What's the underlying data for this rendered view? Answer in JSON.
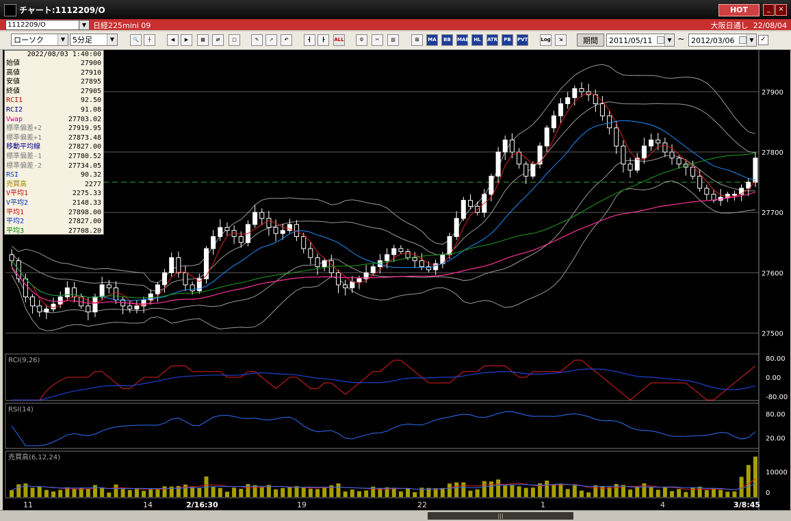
{
  "window": {
    "title": "チャート:1112209/O",
    "hot_label": "HOT",
    "min_glyph": "_",
    "close_glyph": "×"
  },
  "symbol_bar": {
    "code": "1112209/O",
    "name": "日経225mini 09",
    "session": "大阪日通し",
    "date": "22/08/04"
  },
  "toolbar": {
    "chart_type": "ローソク",
    "interval": "5分足",
    "period_label": "期間",
    "date_from": "2011/05/11",
    "date_to": "2012/03/06",
    "tilde": "~",
    "check_mark": "✓",
    "buttons": [
      {
        "name": "zoom-icon",
        "glyph": "🔍"
      },
      {
        "name": "crosshair-icon",
        "glyph": "┼"
      },
      {
        "name": "prev-icon",
        "glyph": "◀"
      },
      {
        "name": "next-icon",
        "glyph": "▶"
      },
      {
        "name": "bars-icon",
        "glyph": "▦"
      },
      {
        "name": "split-icon",
        "glyph": "⇄"
      },
      {
        "name": "blank-icon",
        "glyph": "□"
      },
      {
        "name": "pencil-icon",
        "glyph": "✎"
      },
      {
        "name": "cursor-icon",
        "glyph": "➚"
      },
      {
        "name": "undo-icon",
        "glyph": "↶"
      },
      {
        "name": "candle-icon",
        "glyph": "┫"
      },
      {
        "name": "candle2-icon",
        "glyph": "┣"
      },
      {
        "name": "all-icon",
        "glyph": "ALL"
      },
      {
        "name": "settings-icon",
        "glyph": "⚙"
      },
      {
        "name": "tools-icon",
        "glyph": "✂"
      },
      {
        "name": "palette-icon",
        "glyph": "▧"
      },
      {
        "name": "grid-icon",
        "glyph": "⊞"
      },
      {
        "name": "ma-icon",
        "glyph": "MA"
      },
      {
        "name": "bb-icon",
        "glyph": "BB"
      },
      {
        "name": "mae-icon",
        "glyph": "MAE"
      },
      {
        "name": "hl-icon",
        "glyph": "HL"
      },
      {
        "name": "atr-icon",
        "glyph": "ATR"
      },
      {
        "name": "pb-icon",
        "glyph": "PB"
      },
      {
        "name": "pvt-icon",
        "glyph": "PVT"
      },
      {
        "name": "log-icon",
        "glyph": "Log"
      },
      {
        "name": "export-icon",
        "glyph": "⇲"
      }
    ]
  },
  "info": {
    "datetime": "2022/08/03 1:40:00",
    "rows": [
      {
        "label": "始値",
        "value": "27900",
        "color": "#000000"
      },
      {
        "label": "高値",
        "value": "27910",
        "color": "#000000"
      },
      {
        "label": "安値",
        "value": "27895",
        "color": "#000000"
      },
      {
        "label": "終値",
        "value": "27905",
        "color": "#000000"
      },
      {
        "label": "RCI1",
        "value": "92.50",
        "color": "#c00000"
      },
      {
        "label": "RCI2",
        "value": "91.08",
        "color": "#00008b"
      },
      {
        "label": "Vwap",
        "value": "27703.02",
        "color": "#cc0088"
      },
      {
        "label": "標準偏差+2",
        "value": "27919.95",
        "color": "#808080"
      },
      {
        "label": "標準偏差+1",
        "value": "27873.48",
        "color": "#808080"
      },
      {
        "label": "移動平均線",
        "value": "27827.00",
        "color": "#00008b"
      },
      {
        "label": "標準偏差-1",
        "value": "27780.52",
        "color": "#808080"
      },
      {
        "label": "標準偏差-2",
        "value": "27734.05",
        "color": "#808080"
      },
      {
        "label": "RSI",
        "value": "90.32",
        "color": "#0033cc"
      },
      {
        "label": "売買高",
        "value": "2277",
        "color": "#998800"
      },
      {
        "label": "V平均1",
        "value": "2275.33",
        "color": "#c00000"
      },
      {
        "label": "V平均2",
        "value": "2148.33",
        "color": "#0033cc"
      },
      {
        "label": "平均1",
        "value": "27898.00",
        "color": "#c00000"
      },
      {
        "label": "平均2",
        "value": "27827.00",
        "color": "#0033cc"
      },
      {
        "label": "平均3",
        "value": "27708.20",
        "color": "#008800"
      }
    ]
  },
  "panels": {
    "rci": {
      "label": "RCI(9,26)",
      "ticks": [
        "80.00",
        "0.00",
        "-80.00"
      ]
    },
    "rsi": {
      "label": "RSI(14)",
      "ticks": [
        "80.00",
        "20.00"
      ]
    },
    "volume": {
      "label": "売買高(6,12,24)",
      "ticks": [
        "10000",
        "0"
      ]
    }
  },
  "x_labels": [
    "11",
    "14",
    "2/16:30",
    "19",
    "22",
    "1",
    "4",
    "3/8:45"
  ],
  "scrollbar": {
    "thumb_glyph": "|||"
  },
  "chart_data": {
    "type": "candlestick",
    "price_axis": {
      "ticks": [
        27500,
        27600,
        27700,
        27800,
        27900
      ],
      "ylim": [
        27470,
        27960
      ]
    },
    "reference_level": 27750,
    "candles_close_approx": [
      27620,
      27590,
      27560,
      27545,
      27535,
      27540,
      27548,
      27560,
      27575,
      27560,
      27545,
      27535,
      27560,
      27580,
      27575,
      27555,
      27545,
      27540,
      27545,
      27555,
      27565,
      27580,
      27600,
      27625,
      27600,
      27580,
      27570,
      27590,
      27640,
      27660,
      27675,
      27670,
      27660,
      27650,
      27680,
      27700,
      27690,
      27675,
      27665,
      27670,
      27680,
      27660,
      27640,
      27625,
      27610,
      27620,
      27600,
      27580,
      27575,
      27585,
      27590,
      27600,
      27610,
      27620,
      27630,
      27640,
      27635,
      27625,
      27620,
      27610,
      27605,
      27615,
      27630,
      27660,
      27690,
      27720,
      27710,
      27700,
      27730,
      27760,
      27800,
      27820,
      27800,
      27780,
      27760,
      27780,
      27810,
      27840,
      27860,
      27880,
      27890,
      27905,
      27900,
      27895,
      27880,
      27860,
      27840,
      27810,
      27780,
      27770,
      27790,
      27810,
      27820,
      27815,
      27800,
      27790,
      27780,
      27775,
      27760,
      27740,
      27730,
      27720,
      27725,
      27730,
      27730,
      27740,
      27750,
      27790
    ],
    "rci_ticks": [
      80,
      0,
      -80
    ],
    "rsi_ticks": [
      80,
      20
    ],
    "volume_ticks": [
      10000,
      0
    ]
  }
}
